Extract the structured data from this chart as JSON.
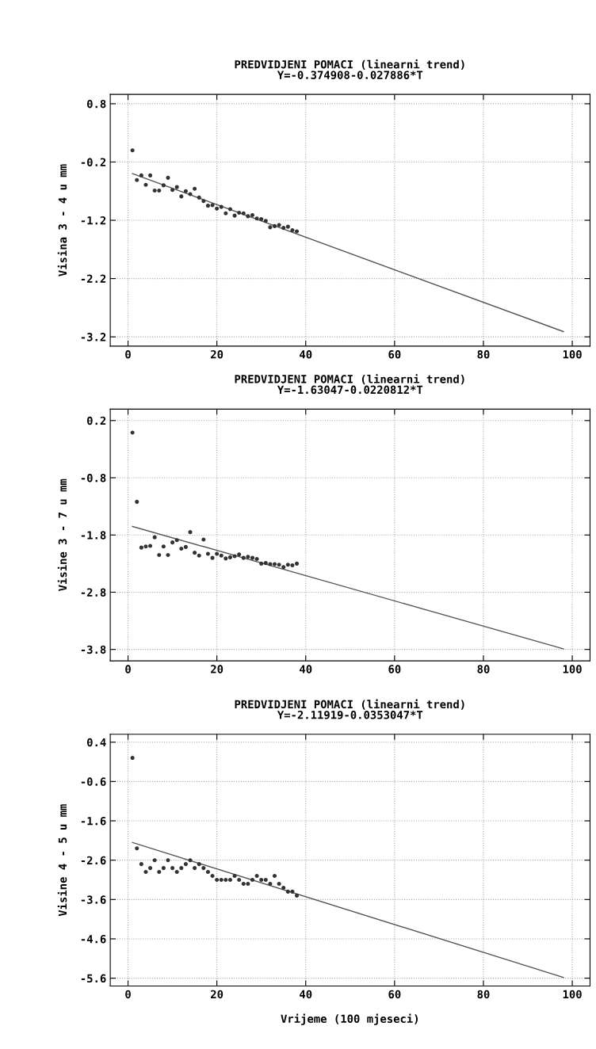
{
  "chart_data": [
    {
      "type": "scatter",
      "title": "PREDVIDJENI POMACI (linearni trend)",
      "subtitle": "Y=-0.374908-0.027886*T",
      "ylabel": "Visina 3 - 4 u mm",
      "xlim": [
        -4,
        104
      ],
      "xticks": [
        0,
        20,
        40,
        60,
        80,
        100
      ],
      "ylim": [
        -3.36,
        0.96
      ],
      "yticks": [
        0.8,
        -0.2,
        -1.2,
        -2.2,
        -3.2
      ],
      "grid": true,
      "series": [
        {
          "color": "#333333",
          "marker": "circle",
          "x": [
            1,
            2,
            3,
            4,
            5,
            6,
            7,
            8,
            9,
            10,
            11,
            12,
            13,
            14,
            15,
            16,
            17,
            18,
            19,
            20,
            21,
            22,
            23,
            24,
            25,
            26,
            27,
            28,
            29,
            30,
            31,
            32,
            33,
            34,
            35,
            36,
            37,
            38
          ],
          "values": [
            0.0,
            -0.51,
            -0.43,
            -0.59,
            -0.43,
            -0.69,
            -0.69,
            -0.6,
            -0.47,
            -0.68,
            -0.63,
            -0.79,
            -0.7,
            -0.75,
            -0.66,
            -0.81,
            -0.87,
            -0.95,
            -0.94,
            -1.0,
            -0.97,
            -1.08,
            -1.01,
            -1.12,
            -1.07,
            -1.08,
            -1.13,
            -1.11,
            -1.17,
            -1.18,
            -1.21,
            -1.32,
            -1.3,
            -1.28,
            -1.33,
            -1.31,
            -1.37,
            -1.39
          ]
        },
        {
          "type": "line",
          "color": "#555555",
          "x": [
            1,
            98
          ],
          "values": [
            -0.4,
            -3.11
          ]
        }
      ]
    },
    {
      "type": "scatter",
      "title": "PREDVIDJENI POMACI (linearni trend)",
      "subtitle": "Y=-1.63047-0.0220812*T",
      "ylabel": "Visine 3 - 7 u mm",
      "xlim": [
        -4,
        104
      ],
      "xticks": [
        0,
        20,
        40,
        60,
        80,
        100
      ],
      "ylim": [
        -4.0,
        0.4
      ],
      "yticks": [
        0.2,
        -0.8,
        -1.8,
        -2.8,
        -3.8
      ],
      "grid": true,
      "series": [
        {
          "color": "#333333",
          "marker": "circle",
          "x": [
            1,
            2,
            3,
            4,
            5,
            6,
            7,
            8,
            9,
            10,
            11,
            12,
            13,
            14,
            15,
            16,
            17,
            18,
            19,
            20,
            21,
            22,
            23,
            24,
            25,
            26,
            27,
            28,
            29,
            30,
            31,
            32,
            33,
            34,
            35,
            36,
            37,
            38
          ],
          "values": [
            -0.01,
            -1.22,
            -2.02,
            -2.0,
            -1.99,
            -1.84,
            -2.15,
            -2.0,
            -2.15,
            -1.93,
            -1.89,
            -2.04,
            -2.01,
            -1.75,
            -2.11,
            -2.16,
            -1.88,
            -2.13,
            -2.2,
            -2.13,
            -2.16,
            -2.21,
            -2.19,
            -2.17,
            -2.14,
            -2.2,
            -2.18,
            -2.2,
            -2.22,
            -2.3,
            -2.29,
            -2.31,
            -2.31,
            -2.32,
            -2.36,
            -2.32,
            -2.33,
            -2.3
          ]
        },
        {
          "type": "line",
          "color": "#555555",
          "x": [
            1,
            98
          ],
          "values": [
            -1.65,
            -3.79
          ]
        }
      ]
    },
    {
      "type": "scatter",
      "title": "PREDVIDJENI POMACI (linearni trend)",
      "subtitle": "Y=-2.11919-0.0353047*T",
      "ylabel": "Visine 4 - 5 u mm",
      "xlabel": "Vrijeme (100 mjeseci)",
      "xlim": [
        -4,
        104
      ],
      "xticks": [
        0,
        20,
        40,
        60,
        80,
        100
      ],
      "ylim": [
        -5.8,
        0.6
      ],
      "yticks": [
        0.4,
        -0.6,
        -1.6,
        -2.6,
        -3.6,
        -4.6,
        -5.6
      ],
      "grid": true,
      "series": [
        {
          "color": "#333333",
          "marker": "circle",
          "x": [
            1,
            2,
            3,
            4,
            5,
            6,
            7,
            8,
            9,
            10,
            11,
            12,
            13,
            14,
            15,
            16,
            17,
            18,
            19,
            20,
            21,
            22,
            23,
            24,
            25,
            26,
            27,
            28,
            29,
            30,
            31,
            32,
            33,
            34,
            35,
            36,
            37,
            38
          ],
          "values": [
            0.0,
            -2.3,
            -2.7,
            -2.9,
            -2.8,
            -2.6,
            -2.9,
            -2.8,
            -2.6,
            -2.8,
            -2.9,
            -2.8,
            -2.7,
            -2.6,
            -2.8,
            -2.7,
            -2.8,
            -2.9,
            -3.0,
            -3.1,
            -3.1,
            -3.1,
            -3.1,
            -3.0,
            -3.1,
            -3.2,
            -3.2,
            -3.1,
            -3.0,
            -3.1,
            -3.1,
            -3.2,
            -3.0,
            -3.2,
            -3.3,
            -3.4,
            -3.4,
            -3.5
          ]
        },
        {
          "type": "line",
          "color": "#555555",
          "x": [
            1,
            98
          ],
          "values": [
            -2.15,
            -5.58
          ]
        }
      ]
    }
  ]
}
